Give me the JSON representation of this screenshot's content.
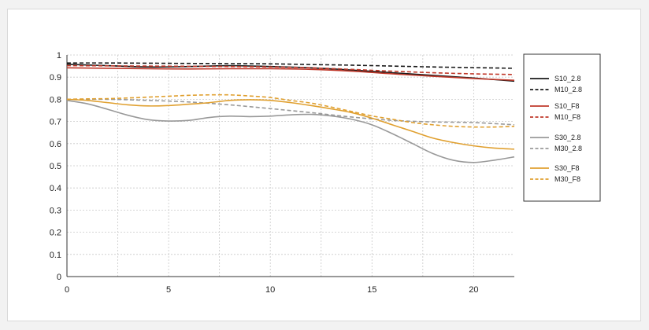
{
  "chart_data": {
    "type": "line",
    "title": "",
    "xlabel": "",
    "ylabel": "",
    "xlim": [
      0,
      22
    ],
    "ylim": [
      0,
      1
    ],
    "xticks": [
      0,
      5,
      10,
      15,
      20
    ],
    "xtick_labels": [
      "0",
      "5",
      "10",
      "15",
      "20"
    ],
    "yticks": [
      0,
      0.1,
      0.2,
      0.3,
      0.4,
      0.5,
      0.6,
      0.7,
      0.8,
      0.9,
      1
    ],
    "ytick_labels": [
      "0",
      "0.1",
      "0.2",
      "0.3",
      "0.4",
      "0.5",
      "0.6",
      "0.7",
      "0.8",
      "0.9",
      "1"
    ],
    "grid": true,
    "legend_position": "right",
    "series": [
      {
        "name": "S10_2.8",
        "color": "#1a1a1a",
        "dash": "solid",
        "x": [
          0,
          2,
          4,
          6,
          8,
          10,
          12,
          14,
          16,
          18,
          20,
          22
        ],
        "y": [
          0.958,
          0.952,
          0.946,
          0.948,
          0.952,
          0.948,
          0.942,
          0.932,
          0.92,
          0.908,
          0.896,
          0.882
        ]
      },
      {
        "name": "M10_2.8",
        "color": "#1a1a1a",
        "dash": "dashed",
        "x": [
          0,
          2,
          4,
          6,
          8,
          10,
          12,
          14,
          16,
          18,
          20,
          22
        ],
        "y": [
          0.964,
          0.964,
          0.963,
          0.962,
          0.961,
          0.96,
          0.957,
          0.954,
          0.95,
          0.946,
          0.943,
          0.94
        ]
      },
      {
        "name": "S10_F8",
        "color": "#c0392b",
        "dash": "solid",
        "x": [
          0,
          2,
          4,
          6,
          8,
          10,
          12,
          14,
          16,
          18,
          20,
          22
        ],
        "y": [
          0.942,
          0.94,
          0.938,
          0.937,
          0.938,
          0.938,
          0.935,
          0.927,
          0.915,
          0.904,
          0.894,
          0.886
        ]
      },
      {
        "name": "M10_F8",
        "color": "#c0392b",
        "dash": "dashed",
        "x": [
          0,
          2,
          4,
          6,
          8,
          10,
          12,
          14,
          16,
          18,
          20,
          22
        ],
        "y": [
          0.952,
          0.951,
          0.95,
          0.949,
          0.948,
          0.946,
          0.942,
          0.935,
          0.927,
          0.92,
          0.915,
          0.912
        ]
      },
      {
        "name": "S30_2.8",
        "color": "#999999",
        "dash": "solid",
        "x": [
          0,
          1,
          2,
          3,
          4,
          5,
          6,
          7,
          8,
          9,
          10,
          11,
          12,
          13,
          14,
          15,
          16,
          17,
          18,
          19,
          20,
          21,
          22
        ],
        "y": [
          0.795,
          0.78,
          0.755,
          0.728,
          0.708,
          0.702,
          0.705,
          0.718,
          0.724,
          0.722,
          0.724,
          0.73,
          0.732,
          0.725,
          0.71,
          0.685,
          0.645,
          0.6,
          0.555,
          0.525,
          0.515,
          0.525,
          0.54
        ]
      },
      {
        "name": "M30_2.8",
        "color": "#999999",
        "dash": "dashed",
        "x": [
          0,
          2,
          4,
          6,
          8,
          10,
          12,
          14,
          16,
          18,
          20,
          22
        ],
        "y": [
          0.8,
          0.8,
          0.795,
          0.788,
          0.775,
          0.758,
          0.74,
          0.72,
          0.705,
          0.698,
          0.695,
          0.685
        ]
      },
      {
        "name": "S30_F8",
        "color": "#e0a030",
        "dash": "solid",
        "x": [
          0,
          1,
          2,
          3,
          4,
          5,
          6,
          7,
          8,
          9,
          10,
          11,
          12,
          13,
          14,
          15,
          16,
          17,
          18,
          19,
          20,
          21,
          22
        ],
        "y": [
          0.8,
          0.795,
          0.785,
          0.775,
          0.77,
          0.772,
          0.778,
          0.785,
          0.795,
          0.798,
          0.795,
          0.785,
          0.772,
          0.757,
          0.74,
          0.715,
          0.685,
          0.655,
          0.625,
          0.605,
          0.59,
          0.58,
          0.575
        ]
      },
      {
        "name": "M30_F8",
        "color": "#e0a030",
        "dash": "dashed",
        "x": [
          0,
          1,
          2,
          3,
          4,
          5,
          6,
          7,
          8,
          9,
          10,
          11,
          12,
          13,
          14,
          15,
          16,
          17,
          18,
          19,
          20,
          21,
          22
        ],
        "y": [
          0.8,
          0.802,
          0.803,
          0.806,
          0.81,
          0.814,
          0.818,
          0.82,
          0.82,
          0.815,
          0.808,
          0.795,
          0.783,
          0.765,
          0.745,
          0.725,
          0.71,
          0.695,
          0.685,
          0.678,
          0.675,
          0.675,
          0.678
        ]
      }
    ]
  }
}
